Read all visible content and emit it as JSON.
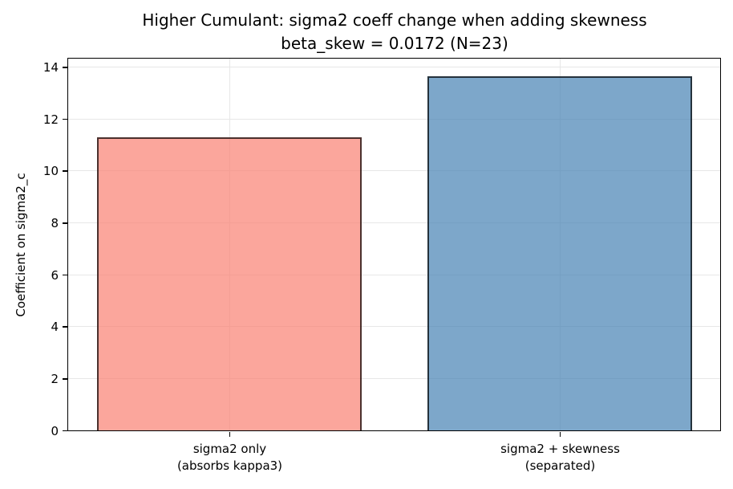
{
  "chart_data": {
    "type": "bar",
    "title": "Higher Cumulant: sigma2 coeff change when adding skewness",
    "subtitle": "beta_skew = 0.0172 (N=23)",
    "ylabel": "Coefficient on sigma2_c",
    "xlabel": "",
    "categories": [
      [
        "sigma2 only",
        "(absorbs kappa3)"
      ],
      [
        "sigma2 + skewness",
        "(separated)"
      ]
    ],
    "values": [
      11.3,
      13.65
    ],
    "yticks": [
      0,
      2,
      4,
      6,
      8,
      10,
      12,
      14
    ],
    "ylim": [
      0,
      14.32
    ],
    "grid": true,
    "grid_color": "#e7e7e7",
    "bar_fill_colors": [
      "rgba(250,128,114,0.7)",
      "rgba(70,130,180,0.7)"
    ],
    "bar_fill_hex_on_white": [
      "#fba69c",
      "#7da7ca"
    ],
    "bar_edge_color": "rgba(0,0,0,0.7)",
    "axis_color": "#000000",
    "legend": null
  }
}
